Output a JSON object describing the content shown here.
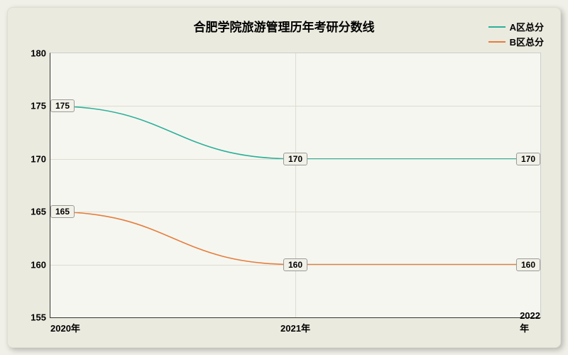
{
  "title": "合肥学院旅游管理历年考研分数线",
  "title_fontsize": 17,
  "background_color": "#ebeadf",
  "plot_background": "#f6f6f0",
  "grid_color": "#dcdcd2",
  "axis_color": "#333333",
  "label_fontsize": 13,
  "tick_fontsize": 13,
  "type": "line",
  "x_categories": [
    "2020年",
    "2021年",
    "2022年"
  ],
  "ylim": [
    155,
    180
  ],
  "ytick_step": 5,
  "y_ticks": [
    155,
    160,
    165,
    170,
    175,
    180
  ],
  "legend": {
    "position": "top-right",
    "fontsize": 13,
    "items": [
      {
        "label": "A区总分",
        "color": "#2bb09a"
      },
      {
        "label": "B区总分",
        "color": "#e57d3c"
      }
    ]
  },
  "series": [
    {
      "name": "A区总分",
      "color": "#2bb09a",
      "line_width": 1.6,
      "values": [
        175,
        170,
        170
      ],
      "point_labels": [
        "175",
        "170",
        "170"
      ]
    },
    {
      "name": "B区总分",
      "color": "#e57d3c",
      "line_width": 1.6,
      "values": [
        165,
        160,
        160
      ],
      "point_labels": [
        "165",
        "160",
        "160"
      ]
    }
  ],
  "point_label_fontsize": 12,
  "point_label_bg": "#f2f1e8",
  "point_label_border": "#999999"
}
